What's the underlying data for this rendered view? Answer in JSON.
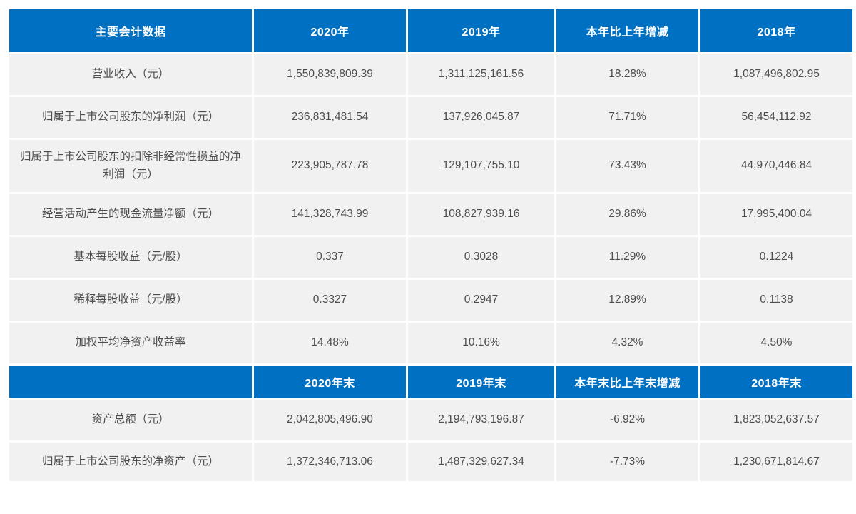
{
  "accent_color": "#0071c2",
  "row_bg_color": "#f1f1f2",
  "body_text_color": "#4d4d4d",
  "annual": {
    "headers": [
      "主要会计数据",
      "2020年",
      "2019年",
      "本年比上年增减",
      "2018年"
    ],
    "rows": [
      [
        "营业收入（元）",
        "1,550,839,809.39",
        "1,311,125,161.56",
        "18.28%",
        "1,087,496,802.95"
      ],
      [
        "归属于上市公司股东的净利润（元）",
        "236,831,481.54",
        "137,926,045.87",
        "71.71%",
        "56,454,112.92"
      ],
      [
        "归属于上市公司股东的扣除非经常性损益的净利润（元）",
        "223,905,787.78",
        "129,107,755.10",
        "73.43%",
        "44,970,446.84"
      ],
      [
        "经营活动产生的现金流量净额（元）",
        "141,328,743.99",
        "108,827,939.16",
        "29.86%",
        "17,995,400.04"
      ],
      [
        "基本每股收益（元/股）",
        "0.337",
        "0.3028",
        "11.29%",
        "0.1224"
      ],
      [
        "稀释每股收益（元/股）",
        "0.3327",
        "0.2947",
        "12.89%",
        "0.1138"
      ],
      [
        "加权平均净资产收益率",
        "14.48%",
        "10.16%",
        "4.32%",
        "4.50%"
      ]
    ]
  },
  "yearend": {
    "headers": [
      "",
      "2020年末",
      "2019年末",
      "本年末比上年末增减",
      "2018年末"
    ],
    "rows": [
      [
        "资产总额（元）",
        "2,042,805,496.90",
        "2,194,793,196.87",
        "-6.92%",
        "1,823,052,637.57"
      ],
      [
        "归属于上市公司股东的净资产（元）",
        "1,372,346,713.06",
        "1,487,329,627.34",
        "-7.73%",
        "1,230,671,814.67"
      ]
    ]
  }
}
